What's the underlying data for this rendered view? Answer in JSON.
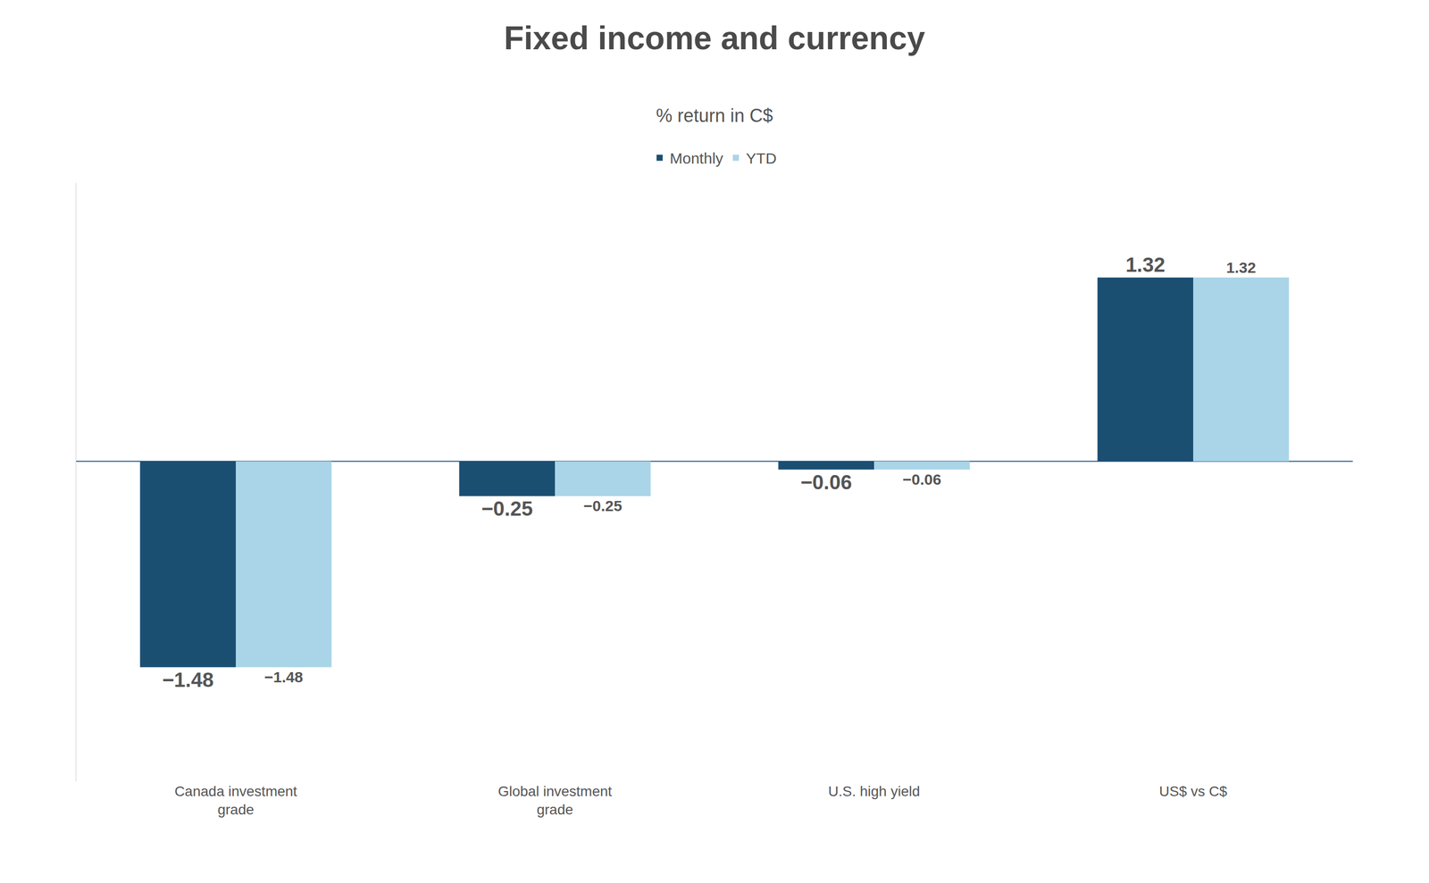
{
  "chart_data": {
    "type": "bar",
    "title": "Fixed income and currency",
    "subtitle": "% return in C$",
    "categories": [
      "Canada investment\ngrade",
      "Global investment\ngrade",
      "U.S. high yield",
      "US$ vs C$"
    ],
    "series": [
      {
        "name": "Monthly",
        "color": "#1b4f72",
        "values": [
          -1.48,
          -0.25,
          -0.06,
          1.32
        ]
      },
      {
        "name": "YTD",
        "color": "#aad4e8",
        "values": [
          -1.48,
          -0.25,
          -0.06,
          1.32
        ]
      }
    ],
    "ylim": [
      -2.3,
      2.0
    ],
    "grid": false,
    "legend": "top",
    "data_labels": true,
    "tick_labels": "x"
  }
}
